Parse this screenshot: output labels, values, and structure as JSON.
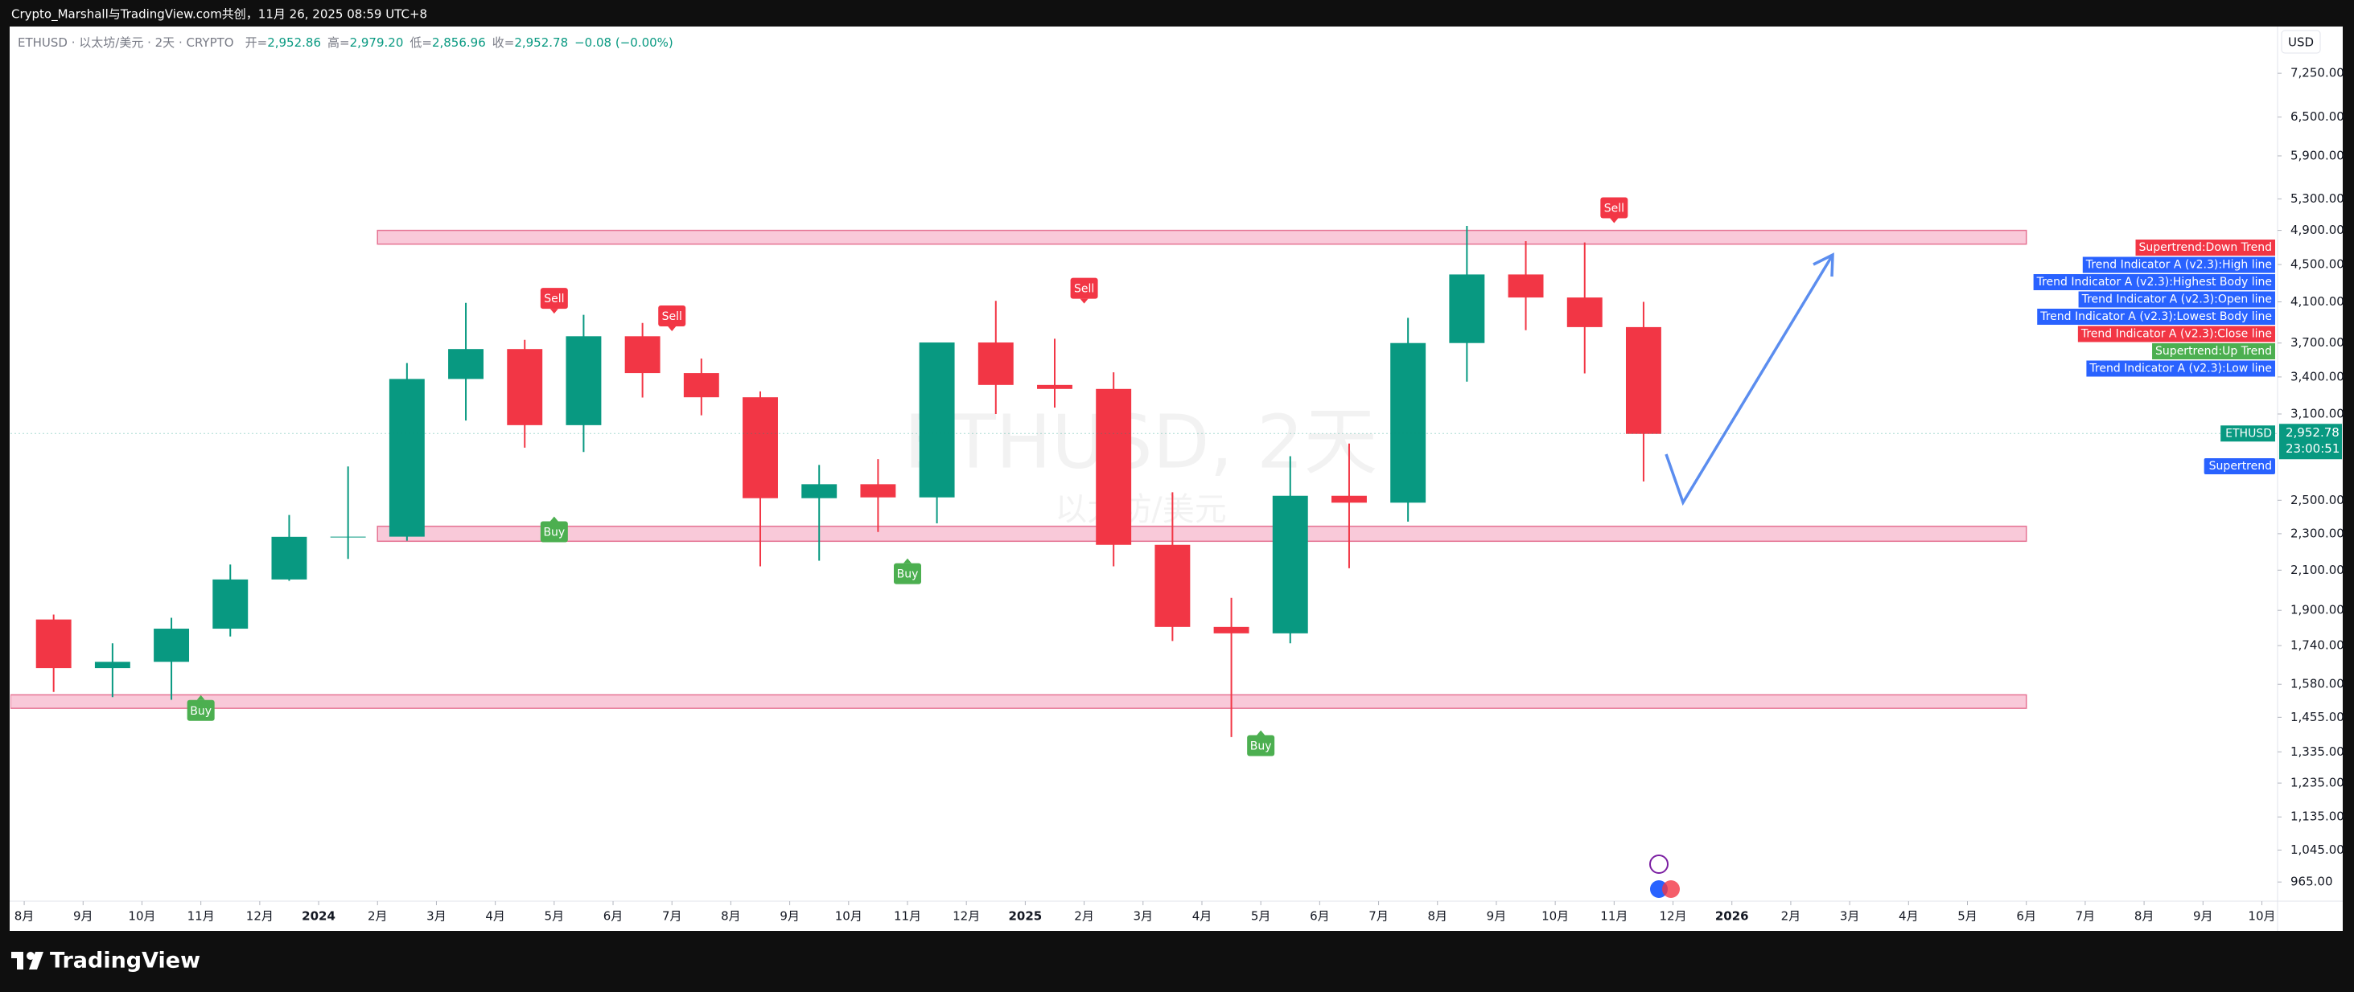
{
  "header": {
    "publisher": "Crypto_Marshall与TradingView.com共创，11月 26, 2025 08:59 UTC+8",
    "symbol": "ETHUSD · 以太坊/美元 · 2天 · CRYPTO",
    "ohlc": [
      {
        "key": "开=",
        "value": "2,952.86"
      },
      {
        "key": "高=",
        "value": "2,979.20"
      },
      {
        "key": "低=",
        "value": "2,856.96"
      },
      {
        "key": "收=",
        "value": "2,952.78"
      }
    ],
    "change": "−0.08 (−0.00%)"
  },
  "brand": "TradingView",
  "chart_data": {
    "type": "candlestick",
    "watermark": "ETHUSD, 2天",
    "watermark_sub": "以太坊/美元",
    "currency": "USD",
    "log_scale": true,
    "grid": false,
    "up_color": "#089981",
    "down_color": "#f23645",
    "x": [
      "2023-08",
      "2023-09",
      "2023-10",
      "2023-11",
      "2023-12",
      "2024-01",
      "2024-02",
      "2024-03",
      "2024-04",
      "2024-05",
      "2024-06",
      "2024-07",
      "2024-08",
      "2024-09",
      "2024-10",
      "2024-11",
      "2024-12",
      "2025-01",
      "2025-02",
      "2025-03",
      "2025-04",
      "2025-05",
      "2025-06",
      "2025-07",
      "2025-08",
      "2025-09",
      "2025-10",
      "2025-11"
    ],
    "series": [
      {
        "name": "ETHUSD",
        "open": [
          1857,
          1645,
          1671,
          1815,
          2052,
          2282,
          2283,
          3383,
          3645,
          3015,
          3763,
          3433,
          3232,
          2513,
          2602,
          2518,
          3705,
          3333,
          3300,
          2237,
          1823,
          1794,
          2528,
          2485,
          3700,
          4390,
          4145,
          3850
        ],
        "high": [
          1880,
          1750,
          1865,
          2130,
          2410,
          2720,
          3520,
          4090,
          3730,
          3970,
          3890,
          3560,
          3280,
          2730,
          2770,
          3680,
          4110,
          3740,
          3440,
          2550,
          1960,
          2790,
          2880,
          3940,
          4955,
          4770,
          4755,
          4100
        ],
        "low": [
          1550,
          1530,
          1520,
          1780,
          2045,
          2160,
          2260,
          3050,
          2850,
          2820,
          3230,
          3090,
          2120,
          2150,
          2310,
          2360,
          3100,
          3150,
          2120,
          1760,
          1385,
          1750,
          2110,
          2370,
          3360,
          3820,
          3430,
          2620
        ],
        "close": [
          1645,
          1671,
          1815,
          2052,
          2282,
          2283,
          3383,
          3645,
          3015,
          3763,
          3433,
          3232,
          2513,
          2602,
          2518,
          3705,
          3333,
          3300,
          2237,
          1823,
          1794,
          2528,
          2485,
          3700,
          4390,
          4145,
          3850,
          2950
        ]
      }
    ],
    "last_price": {
      "value": 2952.78,
      "label": "2,952.78"
    },
    "countdown": "23:00:51",
    "zones": [
      {
        "start": "2024-02",
        "end": "2026-06",
        "low": 4735,
        "high": 4900
      },
      {
        "start": "2024-02",
        "end": "2026-06",
        "low": 2257,
        "high": 2343
      },
      {
        "start": "2023-07",
        "end": "2026-06",
        "low": 1488,
        "high": 1539
      }
    ],
    "signals": [
      {
        "label": "Buy",
        "x": "2023-11",
        "value": 1550
      },
      {
        "label": "Sell",
        "x": "2024-05",
        "value": 3950
      },
      {
        "label": "Buy",
        "x": "2024-05",
        "value": 2420
      },
      {
        "label": "Sell",
        "x": "2024-07",
        "value": 3780
      },
      {
        "label": "Buy",
        "x": "2024-11",
        "value": 2180
      },
      {
        "label": "Sell",
        "x": "2025-02",
        "value": 4050
      },
      {
        "label": "Buy",
        "x": "2025-05",
        "value": 1420
      },
      {
        "label": "Sell",
        "x": "2025-11",
        "value": 4950
      }
    ],
    "indicator_labels": [
      {
        "text": "Supertrend:Down Trend",
        "color": "#f23645"
      },
      {
        "text": "Trend Indicator A (v2.3):High line",
        "color": "#2962ff"
      },
      {
        "text": "Trend Indicator A (v2.3):Highest Body line",
        "color": "#2962ff"
      },
      {
        "text": "Trend Indicator A (v2.3):Open line",
        "color": "#2962ff"
      },
      {
        "text": "Trend Indicator A (v2.3):Lowest Body line",
        "color": "#2962ff"
      },
      {
        "text": "Trend Indicator A (v2.3):Close line",
        "color": "#f23645"
      },
      {
        "text": "Supertrend:Up Trend",
        "color": "#4caf50"
      },
      {
        "text": "Trend Indicator A (v2.3):Low line",
        "color": "#2962ff"
      }
    ],
    "supertrend_tag": "Supertrend",
    "xlim": [
      "2023-07-24",
      "2026-10-09"
    ],
    "xticks": [
      {
        "value": "2023-08",
        "label": "8月"
      },
      {
        "value": "2023-09",
        "label": "9月"
      },
      {
        "value": "2023-10",
        "label": "10月"
      },
      {
        "value": "2023-11",
        "label": "11月"
      },
      {
        "value": "2023-12",
        "label": "12月"
      },
      {
        "value": "2024-01",
        "label": "2024"
      },
      {
        "value": "2024-02",
        "label": "2月"
      },
      {
        "value": "2024-03",
        "label": "3月"
      },
      {
        "value": "2024-04",
        "label": "4月"
      },
      {
        "value": "2024-05",
        "label": "5月"
      },
      {
        "value": "2024-06",
        "label": "6月"
      },
      {
        "value": "2024-07",
        "label": "7月"
      },
      {
        "value": "2024-08",
        "label": "8月"
      },
      {
        "value": "2024-09",
        "label": "9月"
      },
      {
        "value": "2024-10",
        "label": "10月"
      },
      {
        "value": "2024-11",
        "label": "11月"
      },
      {
        "value": "2024-12",
        "label": "12月"
      },
      {
        "value": "2025-01",
        "label": "2025"
      },
      {
        "value": "2025-02",
        "label": "2月"
      },
      {
        "value": "2025-03",
        "label": "3月"
      },
      {
        "value": "2025-04",
        "label": "4月"
      },
      {
        "value": "2025-05",
        "label": "5月"
      },
      {
        "value": "2025-06",
        "label": "6月"
      },
      {
        "value": "2025-07",
        "label": "7月"
      },
      {
        "value": "2025-08",
        "label": "8月"
      },
      {
        "value": "2025-09",
        "label": "9月"
      },
      {
        "value": "2025-10",
        "label": "10月"
      },
      {
        "value": "2025-11",
        "label": "11月"
      },
      {
        "value": "2025-12",
        "label": "12月"
      },
      {
        "value": "2026-01",
        "label": "2026"
      },
      {
        "value": "2026-02",
        "label": "2月"
      },
      {
        "value": "2026-03",
        "label": "3月"
      },
      {
        "value": "2026-04",
        "label": "4月"
      },
      {
        "value": "2026-05",
        "label": "5月"
      },
      {
        "value": "2026-06",
        "label": "6月"
      },
      {
        "value": "2026-07",
        "label": "7月"
      },
      {
        "value": "2026-08",
        "label": "8月"
      },
      {
        "value": "2026-09",
        "label": "9月"
      },
      {
        "value": "2026-10",
        "label": "10月"
      }
    ],
    "ylim": [
      920,
      8130
    ],
    "yticks": [
      {
        "value": 7250,
        "label": "7,250.00"
      },
      {
        "value": 6500,
        "label": "6,500.00"
      },
      {
        "value": 5900,
        "label": "5,900.00"
      },
      {
        "value": 5300,
        "label": "5,300.00"
      },
      {
        "value": 4900,
        "label": "4,900.00"
      },
      {
        "value": 4500,
        "label": "4,500.00"
      },
      {
        "value": 4100,
        "label": "4,100.00"
      },
      {
        "value": 3700,
        "label": "3,700.00"
      },
      {
        "value": 3400,
        "label": "3,400.00"
      },
      {
        "value": 3100,
        "label": "3,100.00"
      },
      {
        "value": 2500,
        "label": "2,500.00"
      },
      {
        "value": 2300,
        "label": "2,300.00"
      },
      {
        "value": 2100,
        "label": "2,100.00"
      },
      {
        "value": 1900,
        "label": "1,900.00"
      },
      {
        "value": 1740,
        "label": "1,740.00"
      },
      {
        "value": 1580,
        "label": "1,580.00"
      },
      {
        "value": 1455,
        "label": "1,455.00"
      },
      {
        "value": 1335,
        "label": "1,335.00"
      },
      {
        "value": 1235,
        "label": "1,235.00"
      },
      {
        "value": 1135,
        "label": "1,135.00"
      },
      {
        "value": 1045,
        "label": "1,045.00"
      },
      {
        "value": 965,
        "label": "965.00"
      }
    ]
  }
}
